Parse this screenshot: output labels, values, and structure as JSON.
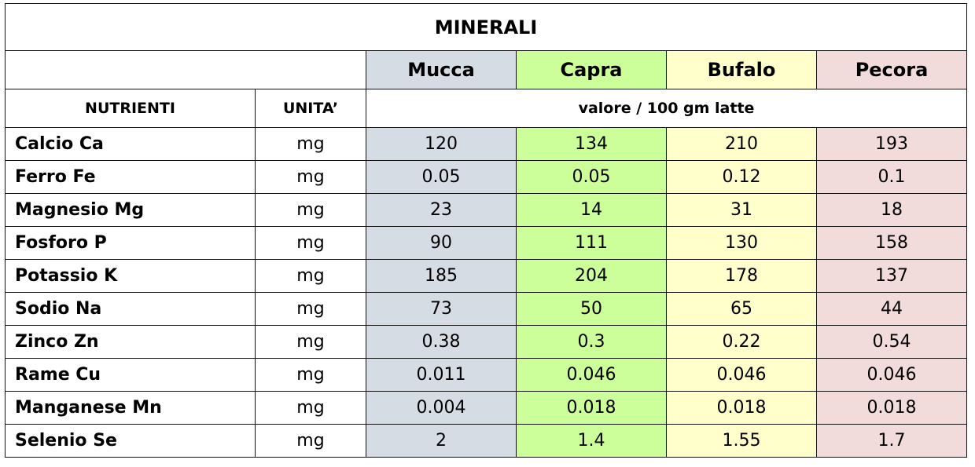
{
  "table": {
    "title": "MINERALI",
    "animals": [
      {
        "label": "Mucca",
        "color": "#d6dce4"
      },
      {
        "label": "Capra",
        "color": "#ccff99"
      },
      {
        "label": "Bufalo",
        "color": "#ffffcc"
      },
      {
        "label": "Pecora",
        "color": "#f2dcdb"
      }
    ],
    "header_nutrienti": "NUTRIENTI",
    "header_unita": "UNITA’",
    "header_valore": "valore / 100 gm latte",
    "rows": [
      {
        "name": "Calcio Ca",
        "unit": "mg",
        "values": [
          "120",
          "134",
          "210",
          "193"
        ]
      },
      {
        "name": "Ferro Fe",
        "unit": "mg",
        "values": [
          "0.05",
          "0.05",
          "0.12",
          "0.1"
        ]
      },
      {
        "name": "Magnesio Mg",
        "unit": "mg",
        "values": [
          "23",
          "14",
          "31",
          "18"
        ]
      },
      {
        "name": "Fosforo P",
        "unit": "mg",
        "values": [
          "90",
          "111",
          "130",
          "158"
        ]
      },
      {
        "name": "Potassio K",
        "unit": "mg",
        "values": [
          "185",
          "204",
          "178",
          "137"
        ]
      },
      {
        "name": "Sodio Na",
        "unit": "mg",
        "values": [
          "73",
          "50",
          "65",
          "44"
        ]
      },
      {
        "name": "Zinco Zn",
        "unit": "mg",
        "values": [
          "0.38",
          "0.3",
          "0.22",
          "0.54"
        ]
      },
      {
        "name": "Rame Cu",
        "unit": "mg",
        "values": [
          "0.011",
          "0.046",
          "0.046",
          "0.046"
        ]
      },
      {
        "name": "Manganese Mn",
        "unit": "mg",
        "values": [
          "0.004",
          "0.018",
          "0.018",
          "0.018"
        ]
      },
      {
        "name": "Selenio Se",
        "unit": "mg",
        "values": [
          "2",
          "1.4",
          "1.55",
          "1.7"
        ]
      }
    ]
  }
}
